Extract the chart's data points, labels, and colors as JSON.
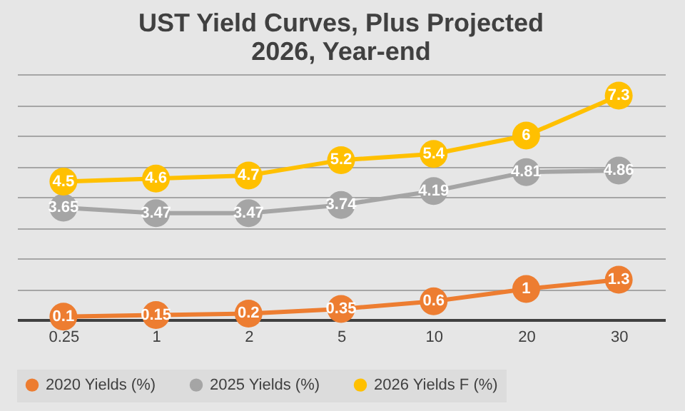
{
  "chart_data": {
    "type": "line",
    "title": "UST Yield Curves, Plus Projected 2026, Year-end",
    "categories": [
      "0.25",
      "1",
      "2",
      "5",
      "10",
      "20",
      "30"
    ],
    "series": [
      {
        "name": "2020 Yields (%)",
        "color": "#ed7d31",
        "values": [
          0.1,
          0.15,
          0.2,
          0.35,
          0.6,
          1,
          1.3
        ]
      },
      {
        "name": "2025 Yields (%)",
        "color": "#a5a5a5",
        "values": [
          3.65,
          3.47,
          3.47,
          3.74,
          4.19,
          4.81,
          4.86
        ]
      },
      {
        "name": "2026 Yields F (%)",
        "color": "#ffc000",
        "values": [
          4.5,
          4.6,
          4.7,
          5.2,
          5.4,
          6,
          7.3
        ]
      }
    ],
    "ylim": [
      0,
      8
    ],
    "yticks": [
      {
        "value": 0,
        "label": null
      },
      {
        "value": 1,
        "label": null
      },
      {
        "value": 2,
        "label": null
      },
      {
        "value": 3,
        "label": null
      },
      {
        "value": 4,
        "label": null
      },
      {
        "value": 5,
        "label": null
      },
      {
        "value": 6,
        "label": null
      },
      {
        "value": 7,
        "label": null
      },
      {
        "value": 8,
        "label": null
      }
    ],
    "tick_labels": "x",
    "grid": "y",
    "legend": "bottom",
    "marker": "circle",
    "line_style": "solid",
    "data_labels": true
  }
}
